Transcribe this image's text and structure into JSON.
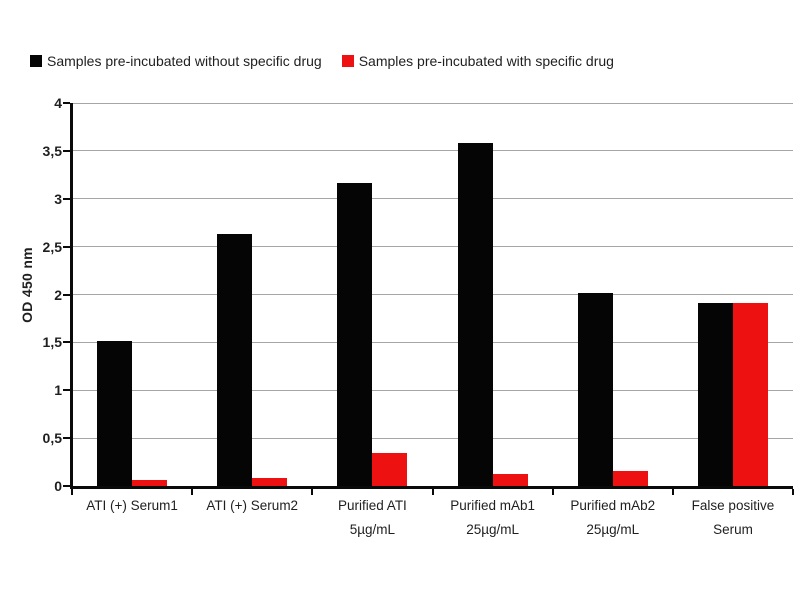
{
  "chart_data": {
    "type": "bar",
    "title": "",
    "ylabel": "OD 450 nm",
    "xlabel": "",
    "ylim": [
      0,
      4
    ],
    "ytick_interval": 0.5,
    "ytick_labels": [
      "0",
      "0,5",
      "1",
      "1,5",
      "2",
      "2,5",
      "3",
      "3,5",
      "4"
    ],
    "decimal_separator": ",",
    "grid": "horizontal",
    "gridline_color": "#a6a6a6",
    "axis_color": "#0a0a0a",
    "legend_position": "top",
    "categories": [
      "ATI (+) Serum1",
      "ATI (+) Serum2",
      "Purified ATI\n5µg/mL",
      "Purified mAb1\n25µg/mL",
      "Purified mAb2\n25µg/mL",
      "False positive\nSerum"
    ],
    "series": [
      {
        "name": "Samples pre-incubated without specific drug",
        "color": "#050505",
        "values": [
          1.51,
          2.63,
          3.16,
          3.58,
          2.02,
          1.91
        ]
      },
      {
        "name": "Samples pre-incubated with specific drug",
        "color": "#ee1111",
        "values": [
          0.06,
          0.08,
          0.35,
          0.13,
          0.16,
          1.91
        ]
      }
    ]
  }
}
